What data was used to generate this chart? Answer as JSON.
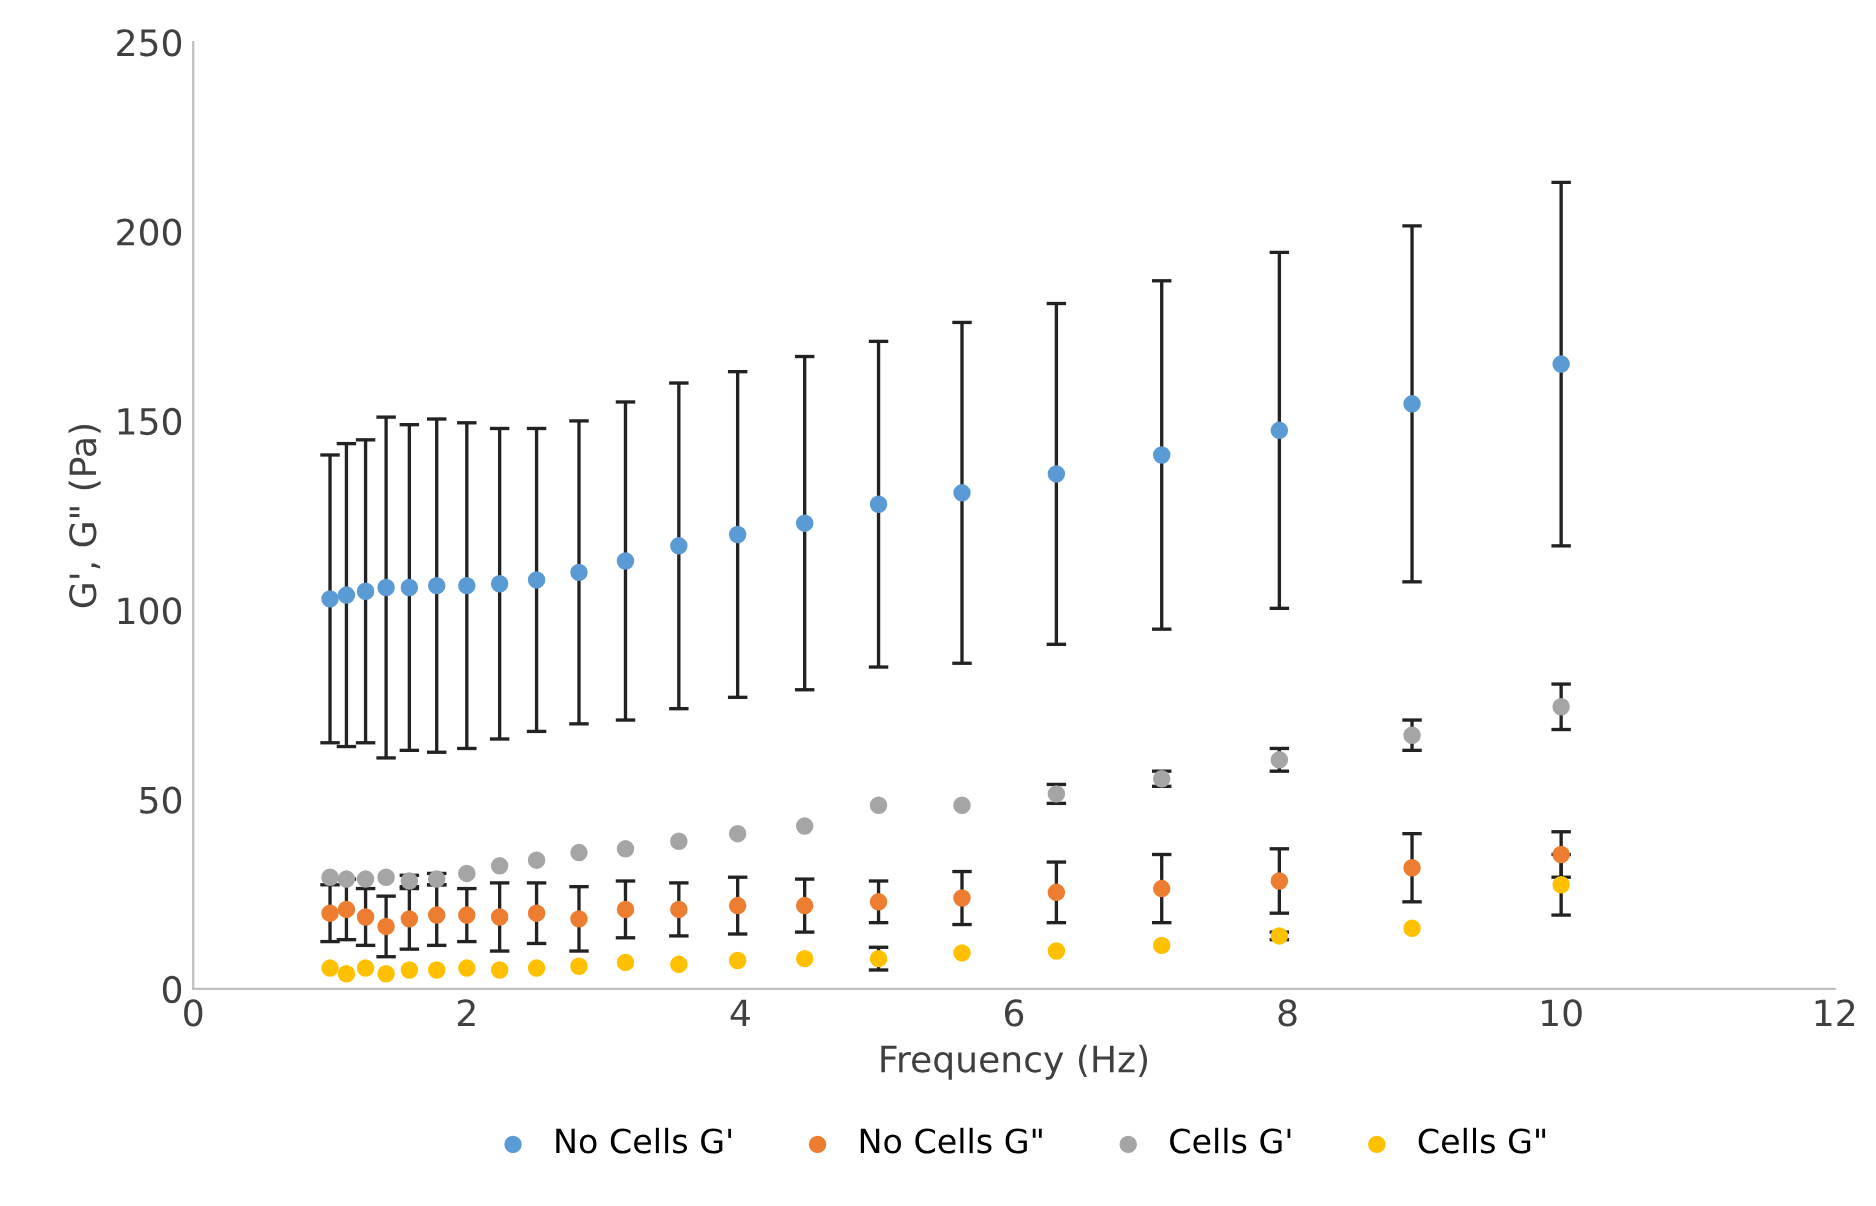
{
  "chart_data": {
    "type": "scatter",
    "xlabel": "Frequency (Hz)",
    "ylabel": "G', G\" (Pa)",
    "x": [
      1,
      1.12,
      1.26,
      1.41,
      1.58,
      1.78,
      2,
      2.24,
      2.51,
      2.82,
      3.16,
      3.55,
      3.98,
      4.47,
      5.01,
      5.62,
      6.31,
      7.08,
      7.94,
      8.91,
      10
    ],
    "xlim": [
      0,
      12
    ],
    "xticks": [
      0,
      2,
      4,
      6,
      8,
      10,
      12
    ],
    "ylim": [
      0,
      250
    ],
    "yticks": [
      0,
      50,
      100,
      150,
      200,
      250
    ],
    "grid": false,
    "legend": "bottom",
    "marker": "circle",
    "series": [
      {
        "name": "No Cells G'",
        "color": "#5b9bd5",
        "values": [
          103,
          104,
          105,
          106,
          106,
          106.5,
          106.5,
          107,
          108,
          110,
          113,
          117,
          120,
          123,
          128,
          131,
          136,
          141,
          147.5,
          154.5,
          165
        ],
        "errors": [
          38,
          40,
          40,
          45,
          43,
          44,
          43,
          41,
          40,
          40,
          42,
          43,
          43,
          44,
          43,
          45,
          45,
          46,
          47,
          47,
          48
        ]
      },
      {
        "name": "No Cells G\"",
        "color": "#ed7d31",
        "values": [
          20,
          21,
          19,
          16.5,
          18.5,
          19.5,
          19.5,
          19,
          20,
          18.5,
          21,
          21,
          22,
          22,
          23,
          24,
          25.5,
          26.5,
          28.5,
          32,
          35.5
        ],
        "errors": [
          7.5,
          8,
          7.5,
          8,
          8,
          8,
          7,
          9,
          8,
          8.5,
          7.5,
          7,
          7.5,
          7,
          5.5,
          7,
          8,
          9,
          8.5,
          9,
          6
        ]
      },
      {
        "name": "Cells G'",
        "color": "#a5a5a5",
        "values": [
          29.5,
          29,
          29,
          29.5,
          28.5,
          29,
          30.5,
          32.5,
          34,
          36,
          37,
          39,
          41,
          43,
          48.5,
          48.5,
          51.5,
          55.5,
          60.5,
          67,
          74.5
        ],
        "errors": [
          null,
          null,
          null,
          null,
          1.5,
          1.5,
          null,
          null,
          null,
          null,
          null,
          null,
          null,
          null,
          null,
          null,
          2.5,
          2,
          3,
          4,
          6
        ]
      },
      {
        "name": "Cells G\"",
        "color": "#ffc000",
        "values": [
          5.5,
          4,
          5.5,
          4,
          5,
          5,
          5.5,
          5,
          5.5,
          6,
          7,
          6.5,
          7.5,
          8,
          8,
          9.5,
          10,
          11.5,
          14,
          16,
          27.5
        ],
        "errors": [
          null,
          null,
          null,
          null,
          null,
          null,
          null,
          null,
          null,
          null,
          null,
          null,
          null,
          null,
          3,
          null,
          null,
          null,
          1,
          null,
          8
        ]
      }
    ]
  }
}
